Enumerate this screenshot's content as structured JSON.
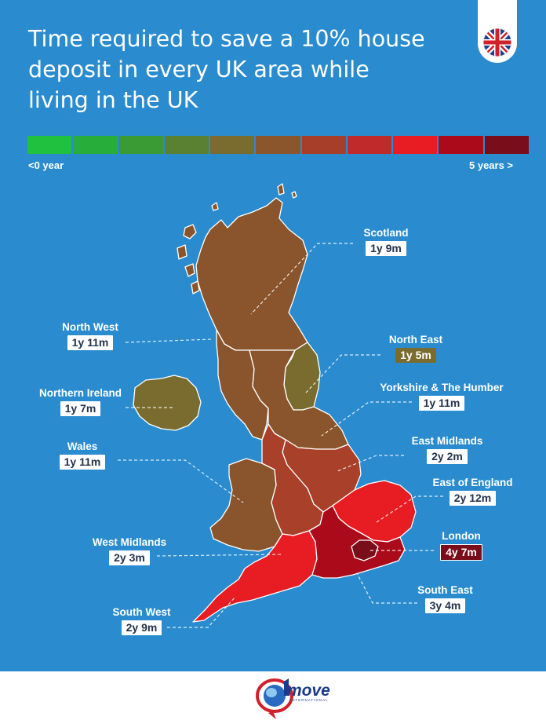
{
  "title": "Time required to save a 10% house deposit in every UK area while living in the UK",
  "flag_icon": "uk-flag-icon",
  "scale": {
    "colors": [
      "#1fc13f",
      "#26ad3a",
      "#3a9a34",
      "#5a8131",
      "#7a6c2e",
      "#8c562c",
      "#a63e2a",
      "#c12a2a",
      "#e81c23",
      "#ab0a1a",
      "#7a0d1a"
    ],
    "min_label": "<0 year",
    "max_label": "5 years >"
  },
  "regions": [
    {
      "name": "Scotland",
      "value": "1y 9m",
      "color": "#8a552c"
    },
    {
      "name": "North West",
      "value": "1y 11m",
      "color": "#8a552c"
    },
    {
      "name": "North East",
      "value": "1y 5m",
      "color": "#7a6c2e"
    },
    {
      "name": "Northern Ireland",
      "value": "1y 7m",
      "color": "#7a6c2e"
    },
    {
      "name": "Yorkshire & The Humber",
      "value": "1y 11m",
      "color": "#8a552c"
    },
    {
      "name": "Wales",
      "value": "1y 11m",
      "color": "#8a552c"
    },
    {
      "name": "East Midlands",
      "value": "2y 2m",
      "color": "#a8402a"
    },
    {
      "name": "East of England",
      "value": "2y 12m",
      "color": "#e81c23"
    },
    {
      "name": "West Midlands",
      "value": "2y 3m",
      "color": "#a8402a"
    },
    {
      "name": "London",
      "value": "4y 7m",
      "color": "#7a0d1a"
    },
    {
      "name": "South East",
      "value": "3y 4m",
      "color": "#ab0a1a"
    },
    {
      "name": "South West",
      "value": "2y 9m",
      "color": "#e81c23"
    }
  ],
  "logo": {
    "icon": "1move-logo-icon",
    "text": "move",
    "sub": "INTERNATIONAL"
  }
}
